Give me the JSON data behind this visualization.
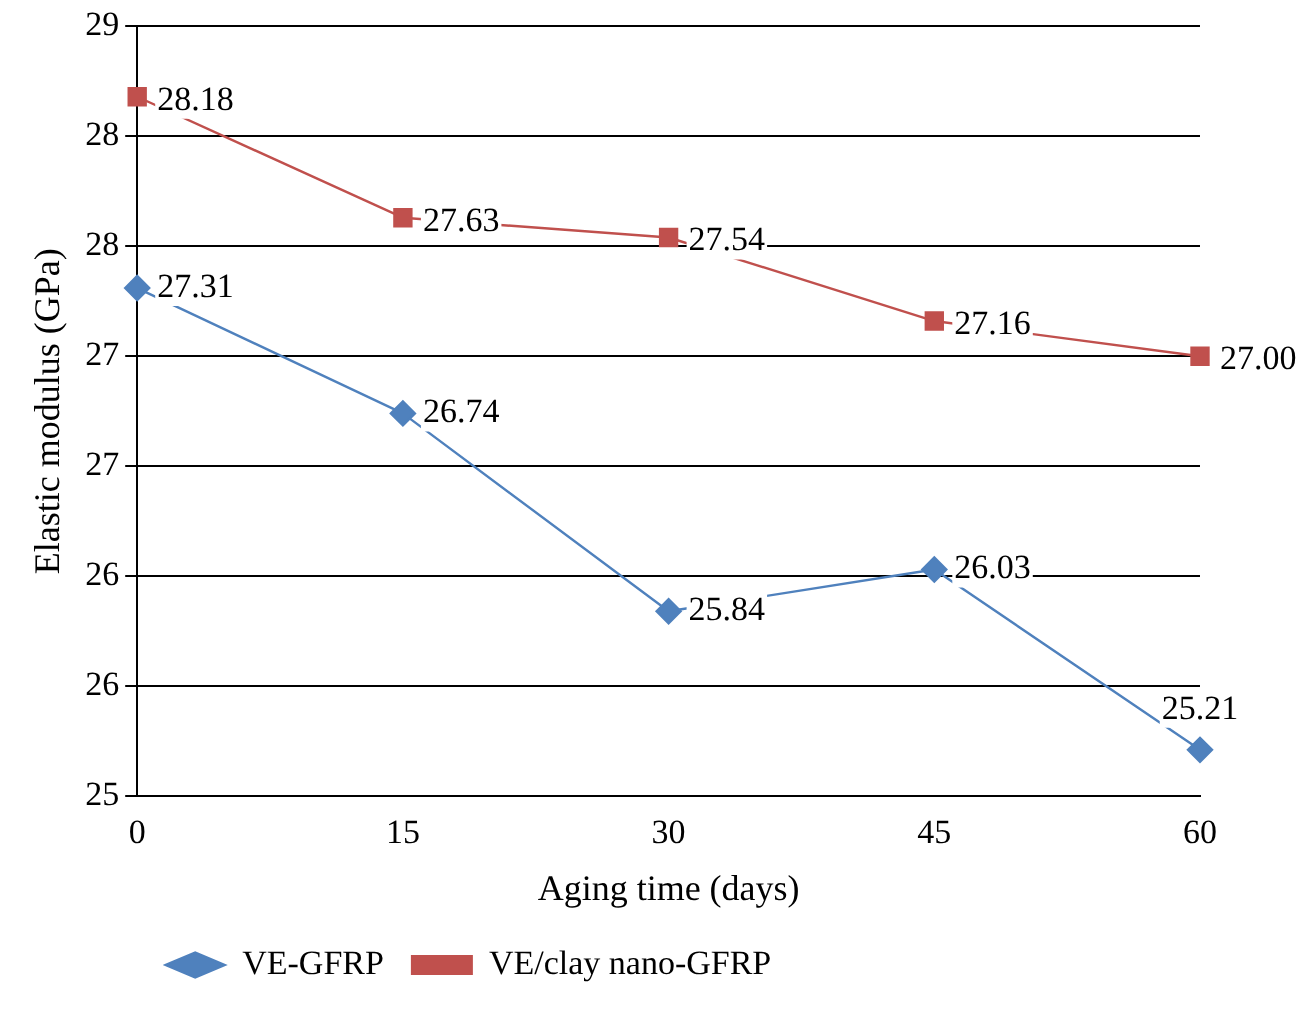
{
  "chart_data": {
    "type": "line",
    "xlabel": "Aging time (days)",
    "ylabel": "Elastic modulus (GPa)",
    "categories": [
      "0",
      "15",
      "30",
      "45",
      "60"
    ],
    "series": [
      {
        "name": "VE-GFRP",
        "color": "#4f81bd",
        "marker": "diamond",
        "values": [
          27.31,
          26.74,
          25.84,
          26.03,
          25.21
        ],
        "value_labels": [
          "27.31",
          "26.74",
          "25.84",
          "26.03",
          "25.21"
        ]
      },
      {
        "name": "VE/clay nano-GFRP",
        "color": "#c0504d",
        "marker": "square",
        "values": [
          28.18,
          27.63,
          27.54,
          27.16,
          27.0
        ],
        "value_labels": [
          "28.18",
          "27.63",
          "27.54",
          "27.16",
          "27.00"
        ]
      }
    ],
    "ylim": [
      25,
      28.5
    ],
    "yticks": [
      {
        "value": 25,
        "label": "25"
      },
      {
        "value": 25.5,
        "label": "26"
      },
      {
        "value": 26,
        "label": "26"
      },
      {
        "value": 26.5,
        "label": "27"
      },
      {
        "value": 27,
        "label": "27"
      },
      {
        "value": 27.5,
        "label": "28"
      },
      {
        "value": 28,
        "label": "28"
      },
      {
        "value": 28.5,
        "label": "29"
      }
    ],
    "grid": "y",
    "legend": "bottom left",
    "line_style": "solid"
  }
}
